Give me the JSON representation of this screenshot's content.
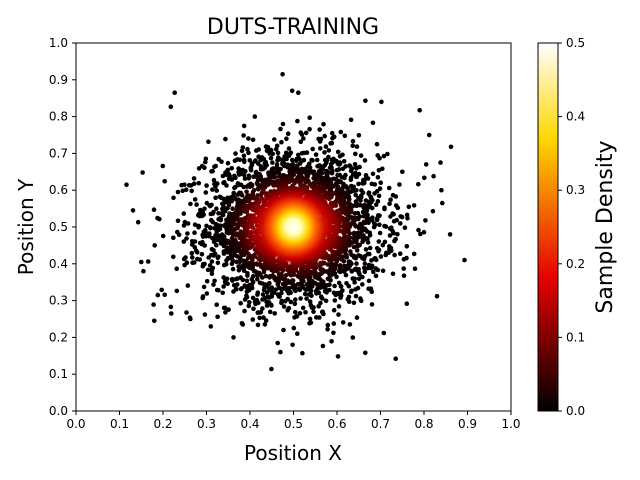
{
  "chart_data": {
    "type": "scatter",
    "title": "DUTS-TRAINING",
    "xlabel": "Position X",
    "ylabel": "Position Y",
    "xlim": [
      0.0,
      1.0
    ],
    "ylim": [
      0.0,
      1.0
    ],
    "x_ticks": [
      "0.0",
      "0.1",
      "0.2",
      "0.3",
      "0.4",
      "0.5",
      "0.6",
      "0.7",
      "0.8",
      "0.9",
      "1.0"
    ],
    "y_ticks": [
      "0.0",
      "0.1",
      "0.2",
      "0.3",
      "0.4",
      "0.5",
      "0.6",
      "0.7",
      "0.8",
      "0.9",
      "1.0"
    ],
    "grid": false,
    "distribution": {
      "center": [
        0.5,
        0.5
      ],
      "spread_sd": 0.1,
      "points_shown_approx": 3500
    },
    "colorbar": {
      "label": "Sample Density",
      "colormap": "hot",
      "range": [
        0.0,
        0.5
      ],
      "ticks": [
        "0.0",
        "0.1",
        "0.2",
        "0.3",
        "0.4",
        "0.5"
      ],
      "colors": [
        "#000000",
        "#e60000",
        "#ffd700",
        "#ffffff"
      ]
    },
    "points": [
      [
        0.475,
        0.915
      ],
      [
        0.227,
        0.865
      ],
      [
        0.497,
        0.87
      ],
      [
        0.511,
        0.865
      ],
      [
        0.702,
        0.84
      ],
      [
        0.79,
        0.817
      ],
      [
        0.218,
        0.827
      ],
      [
        0.116,
        0.615
      ],
      [
        0.131,
        0.545
      ],
      [
        0.143,
        0.513
      ],
      [
        0.153,
        0.648
      ],
      [
        0.15,
        0.405
      ],
      [
        0.155,
        0.38
      ],
      [
        0.181,
        0.45
      ],
      [
        0.188,
        0.315
      ],
      [
        0.18,
        0.245
      ],
      [
        0.218,
        0.283
      ],
      [
        0.219,
        0.265
      ],
      [
        0.263,
        0.25
      ],
      [
        0.31,
        0.23
      ],
      [
        0.362,
        0.2
      ],
      [
        0.47,
        0.16
      ],
      [
        0.498,
        0.18
      ],
      [
        0.735,
        0.142
      ],
      [
        0.83,
        0.312
      ],
      [
        0.86,
        0.48
      ],
      [
        0.893,
        0.41
      ],
      [
        0.842,
        0.565
      ],
      [
        0.84,
        0.6
      ],
      [
        0.822,
        0.638
      ],
      [
        0.838,
        0.675
      ],
      [
        0.805,
        0.67
      ],
      [
        0.812,
        0.75
      ],
      [
        0.765,
        0.555
      ],
      [
        0.75,
        0.65
      ]
    ]
  }
}
